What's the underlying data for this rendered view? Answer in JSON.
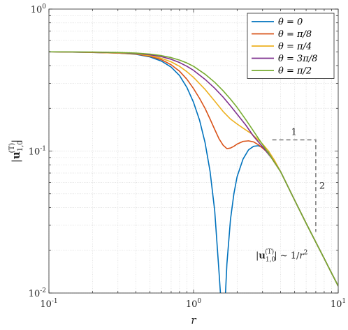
{
  "chart_data": {
    "type": "line",
    "title": "",
    "xlabel": "r",
    "ylabel": "|u_{1,0}^{(T)}|",
    "xscale": "log",
    "yscale": "log",
    "xlim": [
      0.1,
      10
    ],
    "ylim": [
      0.01,
      1
    ],
    "grid": true,
    "minor_grid": true,
    "legend_position": "top-right",
    "x_ticks": [
      {
        "value": 0.1,
        "base": "10",
        "exp": "-1"
      },
      {
        "value": 1,
        "base": "10",
        "exp": "0"
      },
      {
        "value": 10,
        "base": "10",
        "exp": "1"
      }
    ],
    "y_ticks": [
      {
        "value": 0.01,
        "base": "10",
        "exp": "-2"
      },
      {
        "value": 0.1,
        "base": "10",
        "exp": "-1"
      },
      {
        "value": 1,
        "base": "10",
        "exp": "0"
      }
    ],
    "series": [
      {
        "name": "θ = 0",
        "color": "#0072BD",
        "points": [
          [
            0.1,
            0.5
          ],
          [
            0.2,
            0.495
          ],
          [
            0.3,
            0.49
          ],
          [
            0.4,
            0.48
          ],
          [
            0.5,
            0.46
          ],
          [
            0.6,
            0.43
          ],
          [
            0.7,
            0.39
          ],
          [
            0.8,
            0.34
          ],
          [
            0.9,
            0.28
          ],
          [
            1.0,
            0.22
          ],
          [
            1.1,
            0.165
          ],
          [
            1.2,
            0.115
          ],
          [
            1.3,
            0.072
          ],
          [
            1.4,
            0.038
          ],
          [
            1.5,
            0.014
          ],
          [
            1.55,
            0.0085
          ],
          [
            1.6,
            0.008
          ],
          [
            1.65,
            0.0085
          ],
          [
            1.7,
            0.016
          ],
          [
            1.8,
            0.033
          ],
          [
            1.9,
            0.05
          ],
          [
            2.0,
            0.066
          ],
          [
            2.2,
            0.088
          ],
          [
            2.4,
            0.102
          ],
          [
            2.6,
            0.108
          ],
          [
            2.8,
            0.109
          ],
          [
            3.0,
            0.106
          ],
          [
            3.3,
            0.098
          ],
          [
            3.6,
            0.085
          ],
          [
            4.0,
            0.0715
          ],
          [
            5.0,
            0.045
          ],
          [
            6.0,
            0.031
          ],
          [
            7.0,
            0.0228
          ],
          [
            8.0,
            0.0175
          ],
          [
            9.0,
            0.0138
          ],
          [
            10.0,
            0.0112
          ]
        ]
      },
      {
        "name": "θ = π/8",
        "color": "#D95319",
        "points": [
          [
            0.1,
            0.5
          ],
          [
            0.2,
            0.495
          ],
          [
            0.3,
            0.49
          ],
          [
            0.4,
            0.482
          ],
          [
            0.5,
            0.465
          ],
          [
            0.6,
            0.44
          ],
          [
            0.7,
            0.405
          ],
          [
            0.8,
            0.365
          ],
          [
            0.9,
            0.32
          ],
          [
            1.0,
            0.275
          ],
          [
            1.1,
            0.235
          ],
          [
            1.2,
            0.2
          ],
          [
            1.3,
            0.168
          ],
          [
            1.4,
            0.142
          ],
          [
            1.5,
            0.122
          ],
          [
            1.6,
            0.11
          ],
          [
            1.7,
            0.104
          ],
          [
            1.8,
            0.105
          ],
          [
            1.9,
            0.108
          ],
          [
            2.0,
            0.112
          ],
          [
            2.2,
            0.117
          ],
          [
            2.4,
            0.118
          ],
          [
            2.6,
            0.116
          ],
          [
            2.8,
            0.111
          ],
          [
            3.0,
            0.105
          ],
          [
            3.3,
            0.096
          ],
          [
            3.6,
            0.084
          ],
          [
            4.0,
            0.0715
          ],
          [
            5.0,
            0.045
          ],
          [
            6.0,
            0.031
          ],
          [
            7.0,
            0.0228
          ],
          [
            8.0,
            0.0175
          ],
          [
            9.0,
            0.0138
          ],
          [
            10.0,
            0.0112
          ]
        ]
      },
      {
        "name": "θ = π/4",
        "color": "#EDB120",
        "points": [
          [
            0.1,
            0.5
          ],
          [
            0.2,
            0.496
          ],
          [
            0.3,
            0.49
          ],
          [
            0.4,
            0.484
          ],
          [
            0.5,
            0.47
          ],
          [
            0.6,
            0.45
          ],
          [
            0.7,
            0.425
          ],
          [
            0.8,
            0.395
          ],
          [
            0.9,
            0.362
          ],
          [
            1.0,
            0.33
          ],
          [
            1.2,
            0.272
          ],
          [
            1.4,
            0.225
          ],
          [
            1.6,
            0.19
          ],
          [
            1.8,
            0.168
          ],
          [
            2.0,
            0.155
          ],
          [
            2.2,
            0.145
          ],
          [
            2.5,
            0.133
          ],
          [
            2.8,
            0.12
          ],
          [
            3.0,
            0.112
          ],
          [
            3.3,
            0.1
          ],
          [
            3.6,
            0.087
          ],
          [
            4.0,
            0.0715
          ],
          [
            5.0,
            0.045
          ],
          [
            6.0,
            0.031
          ],
          [
            7.0,
            0.0228
          ],
          [
            8.0,
            0.0175
          ],
          [
            9.0,
            0.0138
          ],
          [
            10.0,
            0.0112
          ]
        ]
      },
      {
        "name": "θ = 3π/8",
        "color": "#7E2F8E",
        "points": [
          [
            0.1,
            0.5
          ],
          [
            0.2,
            0.497
          ],
          [
            0.3,
            0.493
          ],
          [
            0.4,
            0.487
          ],
          [
            0.5,
            0.477
          ],
          [
            0.6,
            0.462
          ],
          [
            0.7,
            0.443
          ],
          [
            0.8,
            0.42
          ],
          [
            0.9,
            0.395
          ],
          [
            1.0,
            0.37
          ],
          [
            1.2,
            0.32
          ],
          [
            1.4,
            0.277
          ],
          [
            1.6,
            0.24
          ],
          [
            1.8,
            0.208
          ],
          [
            2.0,
            0.182
          ],
          [
            2.3,
            0.152
          ],
          [
            2.6,
            0.127
          ],
          [
            3.0,
            0.107
          ],
          [
            3.5,
            0.088
          ],
          [
            4.0,
            0.0715
          ],
          [
            5.0,
            0.045
          ],
          [
            6.0,
            0.031
          ],
          [
            7.0,
            0.0228
          ],
          [
            8.0,
            0.0175
          ],
          [
            9.0,
            0.0138
          ],
          [
            10.0,
            0.0112
          ]
        ]
      },
      {
        "name": "θ = π/2",
        "color": "#77AC30",
        "points": [
          [
            0.1,
            0.5
          ],
          [
            0.2,
            0.498
          ],
          [
            0.3,
            0.495
          ],
          [
            0.4,
            0.49
          ],
          [
            0.5,
            0.482
          ],
          [
            0.6,
            0.47
          ],
          [
            0.7,
            0.455
          ],
          [
            0.8,
            0.437
          ],
          [
            0.9,
            0.417
          ],
          [
            1.0,
            0.395
          ],
          [
            1.2,
            0.348
          ],
          [
            1.4,
            0.305
          ],
          [
            1.6,
            0.266
          ],
          [
            1.8,
            0.232
          ],
          [
            2.0,
            0.203
          ],
          [
            2.3,
            0.166
          ],
          [
            2.6,
            0.138
          ],
          [
            3.0,
            0.111
          ],
          [
            3.5,
            0.088
          ],
          [
            4.0,
            0.0715
          ],
          [
            5.0,
            0.045
          ],
          [
            6.0,
            0.031
          ],
          [
            7.0,
            0.0228
          ],
          [
            8.0,
            0.0175
          ],
          [
            9.0,
            0.0138
          ],
          [
            10.0,
            0.0112
          ]
        ]
      }
    ],
    "slope_triangle": {
      "corners": [
        [
          3.5,
          0.12
        ],
        [
          7.0,
          0.12
        ],
        [
          7.0,
          0.027
        ]
      ],
      "color": "#808080",
      "run_label": "1",
      "rise_label": "2"
    },
    "annotation": {
      "text": "|u_{1,0}^{(T)}| ∼ 1/r²",
      "main": "|u",
      "sub": "1,0",
      "sup": "(T)",
      "rest": "| ∼ 1/r",
      "rest_sup": "2"
    }
  }
}
